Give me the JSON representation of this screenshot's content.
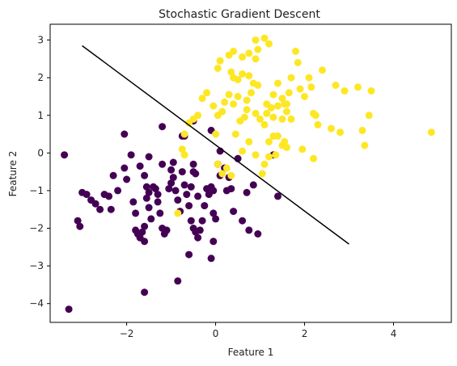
{
  "chart_data": {
    "type": "scatter",
    "title": "Stochastic Gradient Descent",
    "xlabel": "Feature 1",
    "ylabel": "Feature 2",
    "xlim": [
      -3.72,
      5.3
    ],
    "ylim": [
      -4.5,
      3.42
    ],
    "xticks": [
      -2,
      0,
      2,
      4
    ],
    "yticks": [
      -4,
      -3,
      -2,
      -1,
      0,
      1,
      2,
      3
    ],
    "xtick_labels": [
      "−2",
      "0",
      "2",
      "4"
    ],
    "ytick_labels": [
      "−4",
      "−3",
      "−2",
      "−1",
      "0",
      "1",
      "2",
      "3"
    ],
    "grid": false,
    "legend": "none",
    "colors": {
      "class0": "#440154",
      "class1": "#fde725",
      "line": "#000000"
    },
    "decision_boundary": {
      "x": [
        -3.0,
        3.0
      ],
      "y": [
        2.85,
        -2.42
      ]
    },
    "series": [
      {
        "color": "#440154",
        "points": [
          [
            -3.3,
            -4.15
          ],
          [
            -3.4,
            -0.05
          ],
          [
            -3.0,
            -1.05
          ],
          [
            -2.9,
            -1.1
          ],
          [
            -3.1,
            -1.8
          ],
          [
            -3.05,
            -1.95
          ],
          [
            -2.8,
            -1.25
          ],
          [
            -2.7,
            -1.35
          ],
          [
            -2.6,
            -1.5
          ],
          [
            -2.5,
            -1.1
          ],
          [
            -2.4,
            -1.15
          ],
          [
            -2.35,
            -1.5
          ],
          [
            -2.2,
            -1.0
          ],
          [
            -2.3,
            -0.6
          ],
          [
            -2.05,
            -0.4
          ],
          [
            -2.0,
            -0.7
          ],
          [
            -2.05,
            0.5
          ],
          [
            -1.9,
            -0.05
          ],
          [
            -1.85,
            -1.3
          ],
          [
            -1.8,
            -1.6
          ],
          [
            -1.8,
            -2.05
          ],
          [
            -1.75,
            -2.15
          ],
          [
            -1.7,
            -2.25
          ],
          [
            -1.65,
            -2.1
          ],
          [
            -1.6,
            -1.95
          ],
          [
            -1.6,
            -2.35
          ],
          [
            -1.7,
            -0.35
          ],
          [
            -1.6,
            -0.6
          ],
          [
            -1.55,
            -0.9
          ],
          [
            -1.5,
            -1.05
          ],
          [
            -1.55,
            -1.2
          ],
          [
            -1.5,
            -1.45
          ],
          [
            -1.45,
            -1.75
          ],
          [
            -1.5,
            -0.1
          ],
          [
            -1.4,
            -0.9
          ],
          [
            -1.35,
            -0.95
          ],
          [
            -1.3,
            -1.1
          ],
          [
            -1.3,
            -1.3
          ],
          [
            -1.25,
            -1.6
          ],
          [
            -1.2,
            -2.0
          ],
          [
            -1.2,
            -0.3
          ],
          [
            -1.15,
            -2.15
          ],
          [
            -1.1,
            -2.05
          ],
          [
            -1.05,
            -0.95
          ],
          [
            -1.0,
            -0.8
          ],
          [
            -0.95,
            -0.65
          ],
          [
            -1.0,
            -0.45
          ],
          [
            -0.95,
            -0.25
          ],
          [
            -0.9,
            -1.0
          ],
          [
            -0.85,
            -1.25
          ],
          [
            -0.8,
            -1.55
          ],
          [
            -0.75,
            -0.5
          ],
          [
            -0.7,
            -0.85
          ],
          [
            -0.7,
            0.45
          ],
          [
            -0.65,
            -1.1
          ],
          [
            -0.6,
            -1.4
          ],
          [
            -0.55,
            -0.9
          ],
          [
            -0.5,
            -0.5
          ],
          [
            -0.5,
            -0.3
          ],
          [
            -0.45,
            -0.55
          ],
          [
            -0.4,
            -1.15
          ],
          [
            -0.55,
            -1.8
          ],
          [
            -0.5,
            -2.0
          ],
          [
            -0.45,
            -2.1
          ],
          [
            -0.4,
            -2.25
          ],
          [
            -0.35,
            -2.05
          ],
          [
            -0.3,
            -1.8
          ],
          [
            -0.25,
            -1.4
          ],
          [
            -0.2,
            -0.95
          ],
          [
            -0.15,
            -1.1
          ],
          [
            -0.1,
            -0.9
          ],
          [
            -0.05,
            -1.0
          ],
          [
            -0.05,
            -1.6
          ],
          [
            0.0,
            -1.75
          ],
          [
            -0.05,
            -2.35
          ],
          [
            -0.1,
            -2.8
          ],
          [
            -0.6,
            -2.7
          ],
          [
            -0.85,
            -3.4
          ],
          [
            -1.6,
            -3.7
          ],
          [
            -1.2,
            0.7
          ],
          [
            -0.75,
            0.45
          ],
          [
            -0.5,
            0.85
          ],
          [
            0.05,
            -0.3
          ],
          [
            0.1,
            -0.6
          ],
          [
            0.2,
            -0.4
          ],
          [
            0.25,
            -1.0
          ],
          [
            0.3,
            -0.65
          ],
          [
            0.35,
            -0.95
          ],
          [
            0.4,
            -1.55
          ],
          [
            0.5,
            -0.15
          ],
          [
            0.6,
            -1.8
          ],
          [
            0.7,
            -1.05
          ],
          [
            0.75,
            -2.05
          ],
          [
            0.85,
            -0.85
          ],
          [
            0.95,
            -2.15
          ],
          [
            1.4,
            -1.15
          ],
          [
            1.3,
            -0.05
          ],
          [
            -0.1,
            0.6
          ],
          [
            0.1,
            0.05
          ]
        ]
      },
      {
        "color": "#fde725",
        "points": [
          [
            0.9,
            3.0
          ],
          [
            1.1,
            3.05
          ],
          [
            1.2,
            2.9
          ],
          [
            0.95,
            2.75
          ],
          [
            0.75,
            2.65
          ],
          [
            0.9,
            2.5
          ],
          [
            0.6,
            2.55
          ],
          [
            0.4,
            2.7
          ],
          [
            0.3,
            2.6
          ],
          [
            0.1,
            2.45
          ],
          [
            0.05,
            2.25
          ],
          [
            0.35,
            2.15
          ],
          [
            0.4,
            2.0
          ],
          [
            0.5,
            1.95
          ],
          [
            0.6,
            2.1
          ],
          [
            0.75,
            2.05
          ],
          [
            0.85,
            1.85
          ],
          [
            0.95,
            1.8
          ],
          [
            0.8,
            1.6
          ],
          [
            0.7,
            1.4
          ],
          [
            0.5,
            1.5
          ],
          [
            0.4,
            1.3
          ],
          [
            0.3,
            1.55
          ],
          [
            0.2,
            1.35
          ],
          [
            0.15,
            1.1
          ],
          [
            0.05,
            1.0
          ],
          [
            -0.05,
            1.25
          ],
          [
            -0.2,
            1.6
          ],
          [
            -0.3,
            1.45
          ],
          [
            -0.4,
            1.0
          ],
          [
            -0.5,
            0.9
          ],
          [
            -0.6,
            0.8
          ],
          [
            -0.7,
            0.5
          ],
          [
            -0.75,
            0.1
          ],
          [
            -0.7,
            -0.05
          ],
          [
            -0.85,
            -1.6
          ],
          [
            0.0,
            0.5
          ],
          [
            0.05,
            -0.3
          ],
          [
            0.15,
            -0.55
          ],
          [
            0.25,
            -0.4
          ],
          [
            0.35,
            -0.6
          ],
          [
            0.45,
            0.5
          ],
          [
            0.55,
            0.85
          ],
          [
            0.65,
            0.95
          ],
          [
            0.7,
            1.15
          ],
          [
            0.9,
            1.05
          ],
          [
            1.0,
            0.9
          ],
          [
            1.1,
            0.75
          ],
          [
            1.15,
            1.3
          ],
          [
            1.25,
            1.2
          ],
          [
            1.3,
            1.55
          ],
          [
            1.4,
            1.85
          ],
          [
            1.5,
            1.45
          ],
          [
            1.55,
            1.3
          ],
          [
            1.6,
            1.1
          ],
          [
            1.65,
            1.6
          ],
          [
            1.7,
            2.0
          ],
          [
            1.8,
            2.7
          ],
          [
            1.85,
            2.4
          ],
          [
            1.9,
            1.7
          ],
          [
            2.0,
            1.5
          ],
          [
            2.1,
            2.0
          ],
          [
            2.15,
            1.75
          ],
          [
            2.2,
            1.05
          ],
          [
            2.25,
            1.0
          ],
          [
            2.3,
            0.75
          ],
          [
            2.4,
            2.2
          ],
          [
            2.6,
            0.65
          ],
          [
            2.7,
            1.8
          ],
          [
            2.8,
            0.55
          ],
          [
            2.9,
            1.65
          ],
          [
            3.2,
            1.75
          ],
          [
            3.3,
            0.6
          ],
          [
            3.35,
            0.2
          ],
          [
            3.45,
            1.0
          ],
          [
            3.5,
            1.65
          ],
          [
            4.85,
            0.55
          ],
          [
            1.2,
            0.3
          ],
          [
            1.3,
            0.45
          ],
          [
            1.4,
            0.45
          ],
          [
            1.5,
            0.2
          ],
          [
            1.55,
            0.3
          ],
          [
            1.6,
            0.15
          ],
          [
            1.35,
            -0.05
          ],
          [
            1.2,
            -0.1
          ],
          [
            1.1,
            -0.3
          ],
          [
            1.05,
            -0.55
          ],
          [
            0.9,
            -0.05
          ],
          [
            0.75,
            0.3
          ],
          [
            0.6,
            0.05
          ],
          [
            1.95,
            0.1
          ],
          [
            2.2,
            -0.15
          ],
          [
            1.7,
            0.9
          ],
          [
            1.5,
            0.9
          ],
          [
            1.3,
            0.95
          ],
          [
            1.15,
            1.05
          ],
          [
            1.4,
            1.25
          ],
          [
            1.6,
            1.3
          ]
        ]
      }
    ]
  }
}
